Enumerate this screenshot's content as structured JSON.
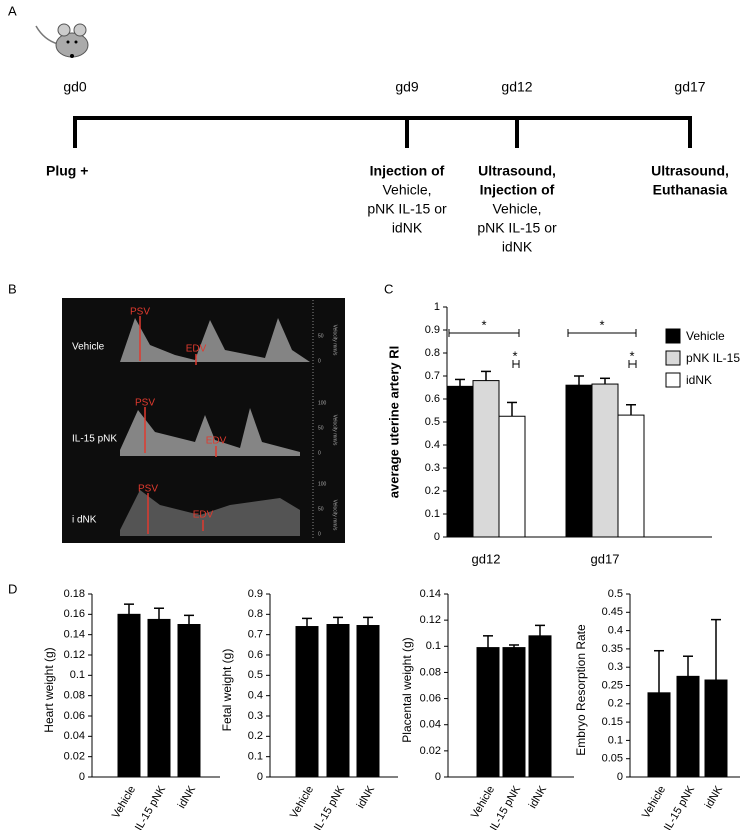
{
  "panel_labels": [
    "A",
    "B",
    "C",
    "D"
  ],
  "timeline": {
    "points": [
      {
        "label": "gd0",
        "notes": [
          {
            "text": "Plug +",
            "bold": true
          }
        ]
      },
      {
        "label": "gd9",
        "notes": [
          {
            "text": "Injection of",
            "bold": true
          },
          {
            "text": "Vehicle,",
            "bold": false
          },
          {
            "text": "pNK IL-15 or",
            "bold": false
          },
          {
            "text": "idNK",
            "bold": false
          }
        ]
      },
      {
        "label": "gd12",
        "notes": [
          {
            "text": "Ultrasound,",
            "bold": true
          },
          {
            "text": "Injection of",
            "bold": true
          },
          {
            "text": "Vehicle,",
            "bold": false
          },
          {
            "text": "pNK IL-15 or",
            "bold": false
          },
          {
            "text": "idNK",
            "bold": false
          }
        ]
      },
      {
        "label": "gd17",
        "notes": [
          {
            "text": "Ultrasound,",
            "bold": true
          },
          {
            "text": "Euthanasia",
            "bold": true
          }
        ]
      }
    ]
  },
  "ultrasound": {
    "rows": [
      {
        "label": "Vehicle",
        "psv": "PSV",
        "edv": "EDV",
        "scale": [
          "50",
          "0"
        ],
        "unit": "Velocity mm/s"
      },
      {
        "label": "IL-15 pNK",
        "psv": "PSV",
        "edv": "EDV",
        "scale": [
          "100",
          "50",
          "0"
        ],
        "unit": "Velocity mm/s"
      },
      {
        "label": "i dNK",
        "psv": "PSV",
        "edv": "EDV",
        "scale": [
          "100",
          "50",
          "0"
        ],
        "unit": "Velocity mm/s"
      }
    ]
  },
  "chart_data": [
    {
      "type": "bar",
      "y_label": "average uterine artery RI",
      "categories": [
        "gd12",
        "gd17"
      ],
      "series": [
        {
          "name": "Vehicle",
          "color": "#000000",
          "values": [
            0.655,
            0.66
          ],
          "errors": [
            0.03,
            0.04
          ]
        },
        {
          "name": "pNK IL-15",
          "color": "#d9d9d9",
          "values": [
            0.68,
            0.665
          ],
          "errors": [
            0.04,
            0.025
          ]
        },
        {
          "name": "idNK",
          "color": "#ffffff",
          "values": [
            0.525,
            0.53
          ],
          "errors": [
            0.06,
            0.045
          ]
        }
      ],
      "ylim": [
        0,
        1
      ],
      "yticks": [
        0,
        0.1,
        0.2,
        0.3,
        0.4,
        0.5,
        0.6,
        0.7,
        0.8,
        0.9,
        1
      ],
      "annotations": [
        "*",
        "*",
        "*",
        "*"
      ],
      "legend": "right"
    },
    {
      "type": "bar",
      "y_label": "Heart weight (g)",
      "categories": [
        "Vehicle",
        "IL-15 pNK",
        "idNK"
      ],
      "color": "#000000",
      "values": [
        0.16,
        0.155,
        0.15
      ],
      "errors": [
        0.01,
        0.011,
        0.009
      ],
      "ylim": [
        0,
        0.18
      ],
      "yticks": [
        0,
        0.02,
        0.04,
        0.06,
        0.08,
        0.1,
        0.12,
        0.14,
        0.16,
        0.18
      ]
    },
    {
      "type": "bar",
      "y_label": "Fetal weight (g)",
      "categories": [
        "Vehicle",
        "IL-15 pNK",
        "idNK"
      ],
      "color": "#000000",
      "values": [
        0.74,
        0.75,
        0.745
      ],
      "errors": [
        0.04,
        0.035,
        0.04
      ],
      "ylim": [
        0,
        0.9
      ],
      "yticks": [
        0,
        0.1,
        0.2,
        0.3,
        0.4,
        0.5,
        0.6,
        0.7,
        0.8,
        0.9
      ]
    },
    {
      "type": "bar",
      "y_label": "Placental weight (g)",
      "categories": [
        "Vehicle",
        "IL-15 pNK",
        "idNK"
      ],
      "color": "#000000",
      "values": [
        0.099,
        0.099,
        0.108
      ],
      "errors": [
        0.009,
        0.002,
        0.008
      ],
      "ylim": [
        0,
        0.14
      ],
      "yticks": [
        0,
        0.02,
        0.04,
        0.06,
        0.08,
        0.1,
        0.12,
        0.14
      ]
    },
    {
      "type": "bar",
      "y_label": "Embryo Resorption Rate",
      "categories": [
        "Vehicle",
        "IL-15 pNK",
        "idNK"
      ],
      "color": "#000000",
      "values": [
        0.23,
        0.275,
        0.265
      ],
      "errors": [
        0.115,
        0.055,
        0.165
      ],
      "ylim": [
        0,
        0.5
      ],
      "yticks": [
        0,
        0.05,
        0.1,
        0.15,
        0.2,
        0.25,
        0.3,
        0.35,
        0.4,
        0.45,
        0.5
      ]
    }
  ]
}
